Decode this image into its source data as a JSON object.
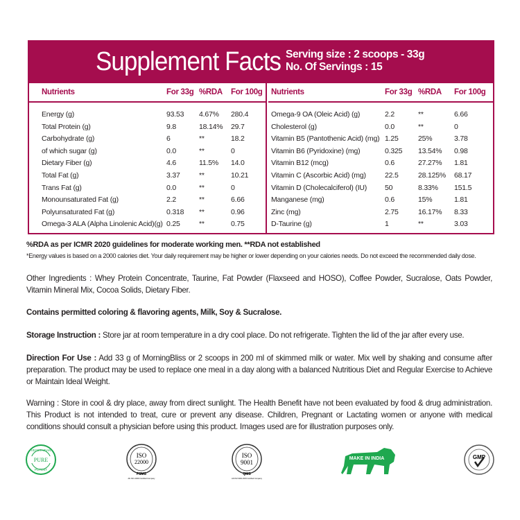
{
  "header": {
    "title": "Supplement Facts",
    "serving_size": "Serving size : 2 scoops - 33g",
    "servings": "No. Of Servings : 15"
  },
  "columns": [
    "Nutrients",
    "For 33g",
    "%RDA",
    "For 100g"
  ],
  "left_rows": [
    [
      "Energy (g)",
      "93.53",
      "4.67%",
      "280.4"
    ],
    [
      "Total Protein (g)",
      "9.8",
      "18.14%",
      "29.7"
    ],
    [
      "Carbohydrate (g)",
      "6",
      "**",
      "18.2"
    ],
    [
      "of which sugar (g)",
      "0.0",
      "**",
      "0"
    ],
    [
      "Dietary Fiber (g)",
      "4.6",
      "11.5%",
      "14.0"
    ],
    [
      "Total Fat (g)",
      "3.37",
      "**",
      "10.21"
    ],
    [
      "Trans Fat (g)",
      "0.0",
      "**",
      "0"
    ],
    [
      "Monounsaturated Fat (g)",
      "2.2",
      "**",
      "6.66"
    ],
    [
      "Polyunsaturated Fat (g)",
      "0.318",
      "**",
      "0.96"
    ],
    [
      "Omega-3 ALA (Alpha Linolenic Acid)(g)",
      "0.25",
      "**",
      "0.75"
    ]
  ],
  "right_rows": [
    [
      "Omega-9 OA (Oleic Acid) (g)",
      "2.2",
      "**",
      "6.66"
    ],
    [
      "Cholesterol (g)",
      "0.0",
      "**",
      "0"
    ],
    [
      "Vitamin B5 (Pantothenic Acid) (mg)",
      "1.25",
      "25%",
      "3.78"
    ],
    [
      "Vitamin B6 (Pyridoxine) (mg)",
      "0.325",
      "13.54%",
      "0.98"
    ],
    [
      "Vitamin B12 (mcg)",
      "0.6",
      "27.27%",
      "1.81"
    ],
    [
      "Vitamin C (Ascorbic Acid) (mg)",
      "22.5",
      "28.125%",
      "68.17"
    ],
    [
      "Vitamin D (Cholecalciferol) (IU)",
      "50",
      "8.33%",
      "151.5"
    ],
    [
      "Manganese (mg)",
      "0.6",
      "15%",
      "1.81"
    ],
    [
      "Zinc (mg)",
      "2.75",
      "16.17%",
      "8.33"
    ],
    [
      "D-Taurine (g)",
      "1",
      "**",
      "3.03"
    ]
  ],
  "notes": {
    "rda": "%RDA as per ICMR 2020 guidelines for moderate working men. **RDA not established",
    "energy": "*Energy values is based on a 2000 calories diet. Your daily requirement may be higher or lower depending on  your calories needs. Do not exceed the recommended daily dose."
  },
  "other_ingredients": "Other Ingredients : Whey Protein Concentrate, Taurine, Fat Powder (Flaxseed and HOSO), Coffee Powder, Sucralose, Oats Powder, Vitamin Mineral Mix, Cocoa Solids, Dietary Fiber.",
  "contains": "Contains permitted coloring & flavoring agents, Milk, Soy & Sucralose.",
  "storage": {
    "label": "Storage Instruction :",
    "text": " Store jar at room temperature in a dry cool place. Do not refrigerate. Tighten the lid of the jar after every use."
  },
  "direction": {
    "label": "Direction For Use :",
    "text": " Add 33 g of MorningBliss or 2 scoops in 200 ml of skimmed milk or water. Mix well by shaking and consume after preparation. The product may be used to replace one meal in a day along with a balanced Nutritious Diet and Regular Exercise to Achieve or Maintain Ideal Weight."
  },
  "warning": "Warning : Store in cool & dry place, away from direct sunlight. The Health Benefit have not been evaluated by food & drug administration. This Product is not intended to treat, cure or prevent any disease. Children, Pregnant or Lactating women or anyone with medical conditions should consult a physician before using this product. Images used are for illustration purposes only.",
  "logos": {
    "pure": {
      "top": "VEGETARIAN",
      "mid": "PURE",
      "bottom": "POTENT"
    },
    "iso22000": {
      "a": "ISO",
      "b": "22000",
      "c": "FSMS",
      "d": "AN ISO 22000 Certified Company"
    },
    "iso9001": {
      "a": "ISO",
      "b": "9001",
      "c": "QMS",
      "d": "AN ISO 9001:2015 Certified Company"
    },
    "india": "MAKE IN INDIA",
    "gmp": "GMP"
  },
  "colors": {
    "brand": "#a50d4e",
    "green": "#1fa84f"
  }
}
